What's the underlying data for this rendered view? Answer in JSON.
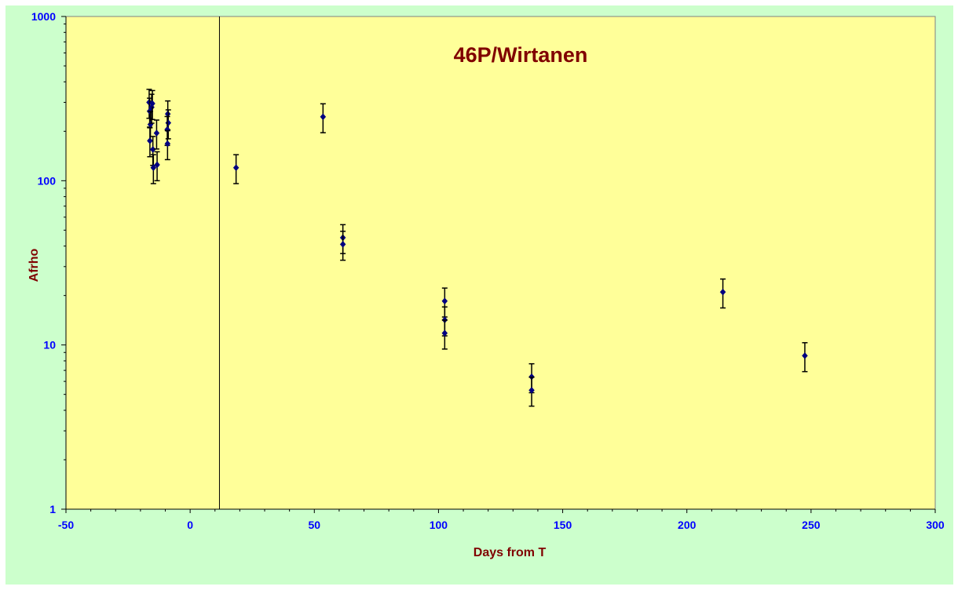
{
  "chart_data": {
    "type": "scatter",
    "title": "46P/Wirtanen",
    "xlabel": "Days from T",
    "ylabel": "Afrho",
    "xlim": [
      -50,
      300
    ],
    "ylim": [
      1,
      1000
    ],
    "y_scale": "log",
    "x_ticks": [
      "-50",
      "0",
      "50",
      "100",
      "150",
      "200",
      "250",
      "300"
    ],
    "y_ticks": [
      "1",
      "10",
      "100",
      "1000"
    ],
    "grid": false,
    "legend": "none",
    "perihelion_marker_x": 11.8,
    "colors": {
      "plot_bg": "#ffff99",
      "outer_bg": "#ccffcc",
      "marker": "#000080",
      "title": "#800000",
      "ticks": "#0000ff"
    },
    "series": [
      {
        "points": [
          {
            "x": -16.5,
            "y": 300,
            "err": 0.2
          },
          {
            "x": -16.3,
            "y": 265,
            "err": 0.2
          },
          {
            "x": -16.0,
            "y": 220,
            "err": 0.2
          },
          {
            "x": -16.2,
            "y": 175,
            "err": 0.2
          },
          {
            "x": -15.5,
            "y": 280,
            "err": 0.2
          },
          {
            "x": -15.2,
            "y": 295,
            "err": 0.2
          },
          {
            "x": -15.0,
            "y": 155,
            "err": 0.2
          },
          {
            "x": -14.8,
            "y": 120,
            "err": 0.2
          },
          {
            "x": -13.5,
            "y": 195,
            "err": 0.2
          },
          {
            "x": -13.3,
            "y": 125,
            "err": 0.2
          },
          {
            "x": -9.0,
            "y": 255,
            "err": 0.2
          },
          {
            "x": -8.8,
            "y": 225,
            "err": 0.2
          },
          {
            "x": -9.2,
            "y": 205,
            "err": 0.2
          },
          {
            "x": -9.1,
            "y": 168,
            "err": 0.2
          },
          {
            "x": 18.5,
            "y": 120,
            "err": 0.2
          },
          {
            "x": 53.5,
            "y": 245,
            "err": 0.2
          },
          {
            "x": 61.5,
            "y": 45,
            "err": 0.2
          },
          {
            "x": 61.5,
            "y": 41,
            "err": 0.2
          },
          {
            "x": 102.5,
            "y": 18.5,
            "err": 0.2
          },
          {
            "x": 102.5,
            "y": 14.2,
            "err": 0.2
          },
          {
            "x": 102.5,
            "y": 11.8,
            "err": 0.2
          },
          {
            "x": 137.5,
            "y": 6.4,
            "err": 0.2
          },
          {
            "x": 137.5,
            "y": 5.3,
            "err": 0.2
          },
          {
            "x": 214.5,
            "y": 21,
            "err": 0.2
          },
          {
            "x": 247.5,
            "y": 8.6,
            "err": 0.2
          }
        ]
      }
    ]
  }
}
